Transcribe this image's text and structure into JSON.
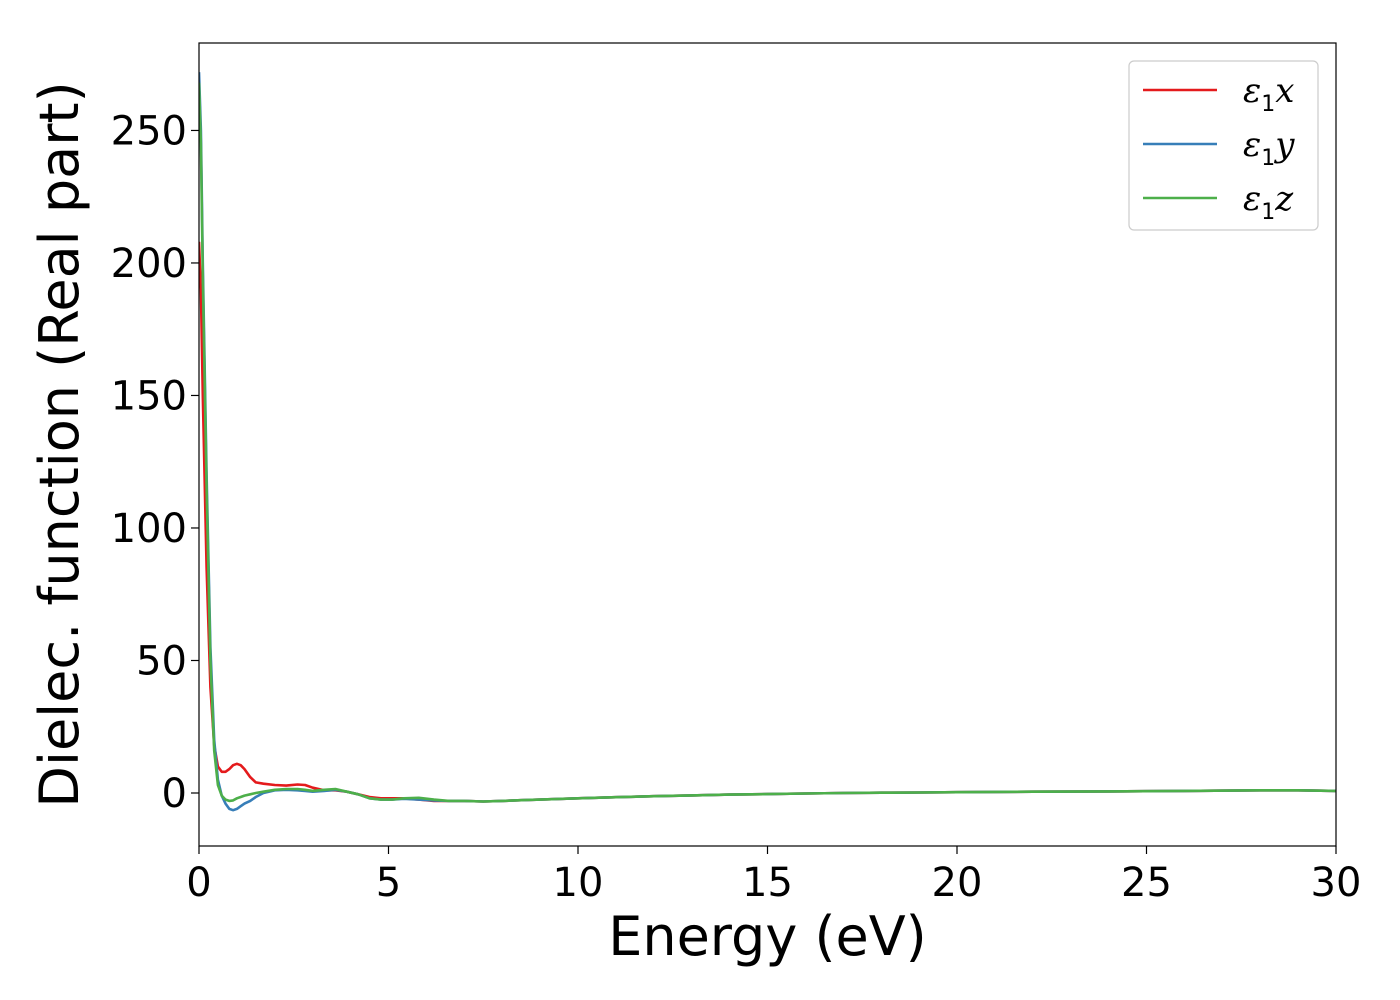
{
  "chart_data": {
    "type": "line",
    "xlabel": "Energy (eV)",
    "ylabel": "Dielec. function (Real part)",
    "xlim": [
      0,
      30
    ],
    "ylim": [
      -20,
      283
    ],
    "xticks": [
      0,
      5,
      10,
      15,
      20,
      25,
      30
    ],
    "yticks": [
      0,
      50,
      100,
      150,
      200,
      250
    ],
    "grid": false,
    "legend_position": "top-right",
    "series": [
      {
        "name": "ε1x",
        "legend_base": "ε",
        "legend_sub": "1",
        "legend_var": "x",
        "color": "#e41a1c",
        "x": [
          0,
          0.05,
          0.1,
          0.2,
          0.3,
          0.4,
          0.5,
          0.6,
          0.7,
          0.8,
          0.9,
          1.0,
          1.1,
          1.2,
          1.35,
          1.5,
          1.7,
          2.0,
          2.3,
          2.6,
          2.8,
          3.0,
          3.3,
          3.6,
          3.9,
          4.2,
          4.5,
          4.8,
          5.1,
          5.4,
          5.8,
          6.2,
          6.6,
          7.0,
          7.5,
          8.0,
          8.5,
          9.0,
          10,
          11,
          12,
          13,
          14,
          15,
          16,
          17,
          18,
          19,
          20,
          22,
          24,
          26,
          28,
          29,
          30
        ],
        "y": [
          208,
          190,
          150,
          85,
          40,
          18,
          10,
          8,
          8,
          9,
          10.5,
          11,
          10.5,
          9,
          6,
          4,
          3.5,
          3,
          2.8,
          3.2,
          3,
          2,
          1,
          1,
          0.5,
          -0.5,
          -1.5,
          -2,
          -2,
          -2,
          -2.5,
          -3,
          -3,
          -3,
          -3.2,
          -3,
          -2.7,
          -2.5,
          -2,
          -1.6,
          -1.2,
          -0.9,
          -0.6,
          -0.4,
          -0.2,
          0,
          0.1,
          0.2,
          0.3,
          0.5,
          0.6,
          0.8,
          1.0,
          1.0,
          0.8
        ]
      },
      {
        "name": "ε1y",
        "legend_base": "ε",
        "legend_sub": "1",
        "legend_var": "y",
        "color": "#377eb8",
        "x": [
          0,
          0.05,
          0.1,
          0.2,
          0.3,
          0.4,
          0.5,
          0.6,
          0.7,
          0.8,
          0.9,
          1.0,
          1.1,
          1.2,
          1.35,
          1.5,
          1.7,
          2.0,
          2.3,
          2.6,
          2.8,
          3.0,
          3.3,
          3.6,
          3.9,
          4.2,
          4.5,
          4.8,
          5.1,
          5.4,
          5.8,
          6.2,
          6.6,
          7.0,
          7.5,
          8.0,
          8.5,
          9.0,
          10,
          11,
          12,
          13,
          14,
          15,
          16,
          17,
          18,
          19,
          20,
          22,
          24,
          26,
          28,
          29,
          30
        ],
        "y": [
          272,
          250,
          200,
          120,
          55,
          20,
          5,
          -1,
          -4,
          -6,
          -6.5,
          -6,
          -5,
          -4,
          -3,
          -1.5,
          0,
          1,
          1.2,
          1,
          0.8,
          0.5,
          0.8,
          1.2,
          0.5,
          -0.5,
          -2,
          -2.5,
          -2.5,
          -2.2,
          -2.5,
          -2.8,
          -3,
          -3,
          -3.2,
          -3,
          -2.7,
          -2.5,
          -2,
          -1.6,
          -1.2,
          -0.9,
          -0.6,
          -0.4,
          -0.2,
          0,
          0.1,
          0.2,
          0.3,
          0.5,
          0.6,
          0.8,
          1.0,
          1.0,
          0.8
        ]
      },
      {
        "name": "ε1z",
        "legend_base": "ε",
        "legend_sub": "1",
        "legend_var": "z",
        "color": "#4daf4a",
        "x": [
          0,
          0.05,
          0.1,
          0.2,
          0.3,
          0.4,
          0.5,
          0.6,
          0.7,
          0.8,
          0.9,
          1.0,
          1.1,
          1.2,
          1.35,
          1.5,
          1.7,
          2.0,
          2.3,
          2.6,
          2.8,
          3.0,
          3.3,
          3.6,
          3.9,
          4.2,
          4.5,
          4.8,
          5.1,
          5.4,
          5.8,
          6.2,
          6.6,
          7.0,
          7.5,
          8.0,
          8.5,
          9.0,
          10,
          11,
          12,
          13,
          14,
          15,
          16,
          17,
          18,
          19,
          20,
          22,
          24,
          26,
          28,
          29,
          30
        ],
        "y": [
          268,
          245,
          195,
          115,
          50,
          16,
          3,
          -1,
          -2.5,
          -3,
          -2.8,
          -2,
          -1.5,
          -1,
          -0.5,
          0,
          0.5,
          1.2,
          1.5,
          1.5,
          1.2,
          0.8,
          1.2,
          1.5,
          0.5,
          -0.5,
          -2,
          -2.5,
          -2.5,
          -2,
          -1.8,
          -2.5,
          -3,
          -3,
          -3.2,
          -3,
          -2.7,
          -2.5,
          -2,
          -1.6,
          -1.2,
          -0.9,
          -0.6,
          -0.4,
          -0.2,
          0,
          0.1,
          0.2,
          0.3,
          0.5,
          0.6,
          0.8,
          1.0,
          1.0,
          0.8
        ]
      }
    ]
  }
}
